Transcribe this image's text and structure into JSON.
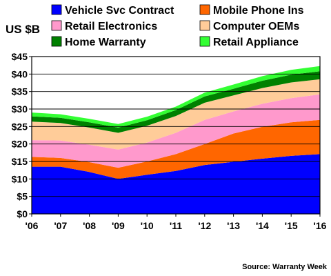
{
  "chart_data": {
    "type": "area",
    "stacked": true,
    "ylabel": "US $B",
    "source": "Source: Warranty Week",
    "x": [
      "'06",
      "'07",
      "'08",
      "'09",
      "'10",
      "'11",
      "'12",
      "'13",
      "'14",
      "'15",
      "'16"
    ],
    "yticks": [
      "$0",
      "$5",
      "$10",
      "$15",
      "$20",
      "$25",
      "$30",
      "$35",
      "$40",
      "$45"
    ],
    "ylim": [
      0,
      45
    ],
    "grid": true,
    "legend_position": "top",
    "series": [
      {
        "name": "Vehicle Svc Contract",
        "color": "#0000ff",
        "values": [
          13.5,
          13.5,
          12.0,
          10.0,
          11.2,
          12.3,
          14.0,
          14.9,
          15.8,
          16.6,
          17.1
        ]
      },
      {
        "name": "Mobile Phone Ins",
        "color": "#ff6600",
        "values": [
          2.8,
          2.5,
          2.8,
          3.2,
          3.8,
          4.8,
          6.0,
          8.1,
          9.1,
          9.6,
          9.8
        ]
      },
      {
        "name": "Retail Electronics",
        "color": "#ff99cc",
        "values": [
          4.8,
          5.0,
          5.0,
          5.2,
          5.4,
          6.1,
          6.9,
          6.3,
          6.6,
          6.9,
          7.3
        ]
      },
      {
        "name": "Computer OEMs",
        "color": "#ffcc99",
        "values": [
          5.3,
          5.0,
          4.9,
          4.8,
          4.8,
          4.8,
          4.9,
          4.6,
          4.5,
          4.5,
          4.3
        ]
      },
      {
        "name": "Home Warranty",
        "color": "#008000",
        "values": [
          1.5,
          1.5,
          1.5,
          1.5,
          1.6,
          1.7,
          1.8,
          1.9,
          2.1,
          2.2,
          2.3
        ]
      },
      {
        "name": "Retail Appliance",
        "color": "#33ff33",
        "values": [
          1.1,
          1.0,
          1.0,
          1.0,
          1.0,
          1.0,
          1.1,
          1.2,
          1.3,
          1.4,
          1.5
        ]
      }
    ]
  }
}
